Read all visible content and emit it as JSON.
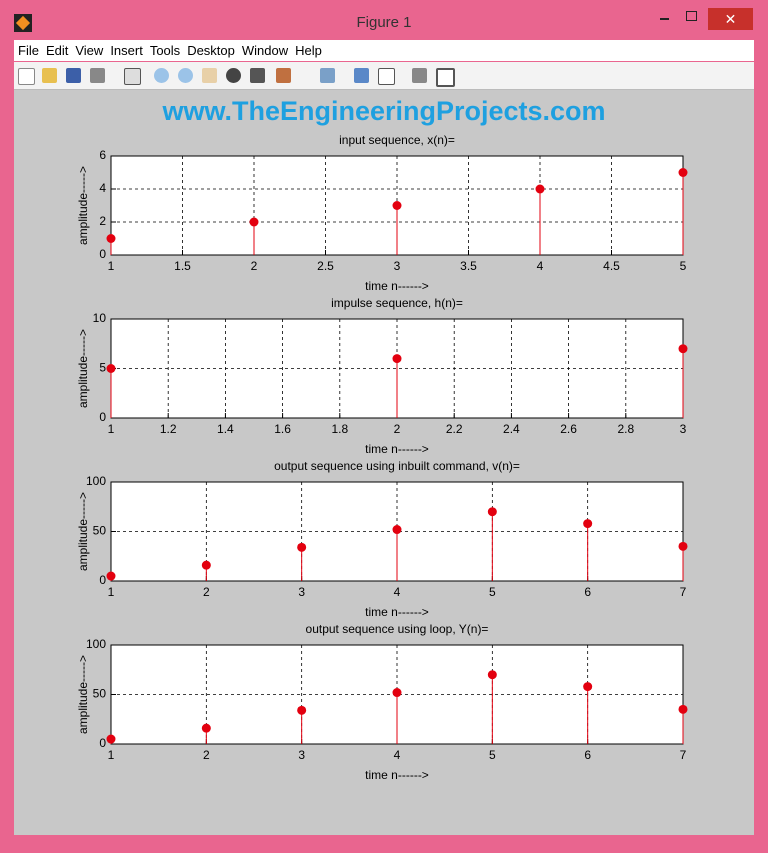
{
  "window": {
    "title": "Figure 1",
    "menu": [
      "File",
      "Edit",
      "View",
      "Insert",
      "Tools",
      "Desktop",
      "Window",
      "Help"
    ]
  },
  "banner": "www.TheEngineeringProjects.com",
  "chart_data": [
    {
      "type": "stem",
      "title": "input sequence, x(n)=",
      "x_label": "time n------>",
      "y_label": "amplitude----->",
      "x": [
        1,
        2,
        3,
        4,
        5
      ],
      "values": [
        1,
        2,
        3,
        4,
        5
      ],
      "color": "#e3000f",
      "xlim": [
        1,
        5
      ],
      "xticks": [
        1,
        1.5,
        2,
        2.5,
        3,
        3.5,
        4,
        4.5,
        5
      ],
      "ylim": [
        0,
        6
      ],
      "yticks": [
        0,
        2,
        4,
        6
      ],
      "grid": true
    },
    {
      "type": "stem",
      "title": "impulse sequence, h(n)=",
      "x_label": "time n------>",
      "y_label": "amplitude----->",
      "x": [
        1,
        2,
        3
      ],
      "values": [
        5,
        6,
        7
      ],
      "color": "#e3000f",
      "xlim": [
        1,
        3
      ],
      "xticks": [
        1,
        1.2,
        1.4,
        1.6,
        1.8,
        2,
        2.2,
        2.4,
        2.6,
        2.8,
        3
      ],
      "ylim": [
        0,
        10
      ],
      "yticks": [
        0,
        5,
        10
      ],
      "grid": true
    },
    {
      "type": "stem",
      "title": "output sequence using inbuilt command, v(n)=",
      "x_label": "time n------>",
      "y_label": "amplitude----->",
      "x": [
        1,
        2,
        3,
        4,
        5,
        6,
        7
      ],
      "values": [
        5,
        16,
        34,
        52,
        70,
        58,
        35
      ],
      "color": "#e3000f",
      "xlim": [
        1,
        7
      ],
      "xticks": [
        1,
        2,
        3,
        4,
        5,
        6,
        7
      ],
      "ylim": [
        0,
        100
      ],
      "yticks": [
        0,
        50,
        100
      ],
      "grid": true
    },
    {
      "type": "stem",
      "title": "output sequence using loop, Y(n)=",
      "x_label": "time n------>",
      "y_label": "amplitude----->",
      "x": [
        1,
        2,
        3,
        4,
        5,
        6,
        7
      ],
      "values": [
        5,
        16,
        34,
        52,
        70,
        58,
        35
      ],
      "color": "#e3000f",
      "xlim": [
        1,
        7
      ],
      "xticks": [
        1,
        2,
        3,
        4,
        5,
        6,
        7
      ],
      "ylim": [
        0,
        100
      ],
      "yticks": [
        0,
        50,
        100
      ],
      "grid": true
    }
  ]
}
